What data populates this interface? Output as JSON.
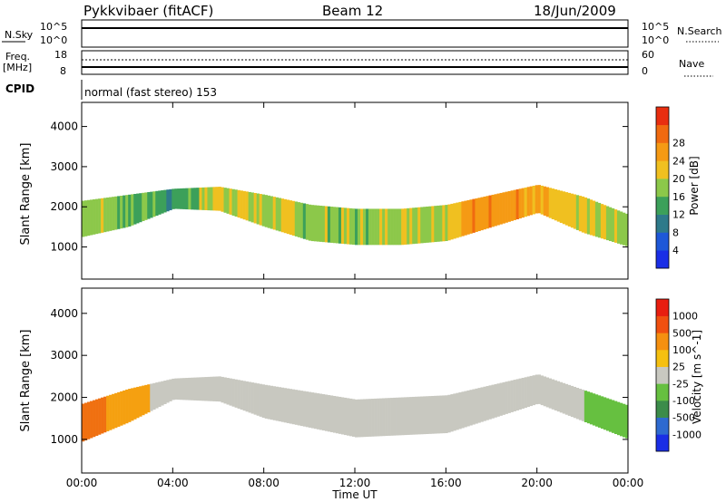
{
  "header": {
    "title": "Pykkvibaer (fitACF)",
    "beam": "Beam 12",
    "date": "18/Jun/2009"
  },
  "panels": {
    "nsky": {
      "label": "N.Sky",
      "tick_top": "10^5",
      "tick_bottom": "10^0",
      "right_tick_top": "10^5",
      "right_tick_bottom": "10^0",
      "right_label": "N.Search"
    },
    "freq": {
      "label_line1": "Freq.",
      "label_line2": "[MHz]",
      "tick_top": "18",
      "tick_bottom": "8",
      "right_tick_top": "60",
      "right_tick_bottom": "0",
      "right_label": "Nave"
    },
    "cpid": {
      "label": "CPID",
      "text": "normal (fast stereo) 153"
    }
  },
  "chart_data": [
    {
      "type": "heatmap",
      "name": "power",
      "ylabel": "Slant Range [km]",
      "xlabel": "",
      "ylim": [
        200,
        4600
      ],
      "y_ticks": [
        "1000",
        "2000",
        "3000",
        "4000"
      ],
      "x_ticks": [
        "00:00",
        "04:00",
        "08:00",
        "12:00",
        "16:00",
        "20:00",
        "00:00"
      ],
      "colorbar": {
        "label": "Power [dB]",
        "ticks": [
          "4",
          "8",
          "12",
          "16",
          "20",
          "24",
          "28"
        ],
        "colors": [
          "#1a2ee6",
          "#1e58d8",
          "#2e7a8a",
          "#3ca05a",
          "#8cc84a",
          "#f0c020",
          "#f59a14",
          "#f06a10",
          "#e82e10"
        ]
      },
      "bands": [
        {
          "hour": 0,
          "center": 1700,
          "width": 900,
          "level": 0.55
        },
        {
          "hour": 2,
          "center": 1900,
          "width": 800,
          "level": 0.45
        },
        {
          "hour": 4,
          "center": 2200,
          "width": 500,
          "level": 0.35
        },
        {
          "hour": 6,
          "center": 2200,
          "width": 600,
          "level": 0.6
        },
        {
          "hour": 8,
          "center": 1900,
          "width": 800,
          "level": 0.55
        },
        {
          "hour": 10,
          "center": 1600,
          "width": 900,
          "level": 0.5
        },
        {
          "hour": 12,
          "center": 1500,
          "width": 900,
          "level": 0.5
        },
        {
          "hour": 14,
          "center": 1500,
          "width": 900,
          "level": 0.55
        },
        {
          "hour": 16,
          "center": 1600,
          "width": 900,
          "level": 0.6
        },
        {
          "hour": 18,
          "center": 1900,
          "width": 800,
          "level": 0.8
        },
        {
          "hour": 20,
          "center": 2200,
          "width": 700,
          "level": 0.65
        },
        {
          "hour": 22,
          "center": 1800,
          "width": 900,
          "level": 0.55
        },
        {
          "hour": 24,
          "center": 1400,
          "width": 800,
          "level": 0.5
        }
      ]
    },
    {
      "type": "heatmap",
      "name": "velocity",
      "ylabel": "Slant Range [km]",
      "xlabel": "Time UT",
      "ylim": [
        200,
        4600
      ],
      "y_ticks": [
        "1000",
        "2000",
        "3000",
        "4000"
      ],
      "x_ticks": [
        "00:00",
        "04:00",
        "08:00",
        "12:00",
        "16:00",
        "20:00",
        "00:00"
      ],
      "colorbar": {
        "label": "Velocity [m s^-1]",
        "ticks": [
          "1000",
          "500",
          "100",
          "25",
          "-25",
          "-100",
          "-500",
          "-1000"
        ],
        "colors": [
          "#1a2ee6",
          "#2e6ad0",
          "#3c8c4a",
          "#66c040",
          "#c8c8c0",
          "#f5c010",
          "#f59010",
          "#f05010",
          "#e81e10"
        ]
      },
      "bands": [
        {
          "hour": 0,
          "center": 1400,
          "width": 900,
          "color": "#f07010"
        },
        {
          "hour": 2,
          "center": 1800,
          "width": 800,
          "color": "#f5a010"
        },
        {
          "hour": 4,
          "center": 2200,
          "width": 500,
          "color": "#c8c8c0"
        },
        {
          "hour": 6,
          "center": 2200,
          "width": 600,
          "color": "#c8c8c0"
        },
        {
          "hour": 8,
          "center": 1900,
          "width": 800,
          "color": "#c8c8c0"
        },
        {
          "hour": 12,
          "center": 1500,
          "width": 900,
          "color": "#c8c8c0"
        },
        {
          "hour": 16,
          "center": 1600,
          "width": 900,
          "color": "#c8c8c0"
        },
        {
          "hour": 20,
          "center": 2200,
          "width": 700,
          "color": "#c8c8c0"
        },
        {
          "hour": 24,
          "center": 1400,
          "width": 800,
          "color": "#66c040"
        }
      ]
    }
  ]
}
